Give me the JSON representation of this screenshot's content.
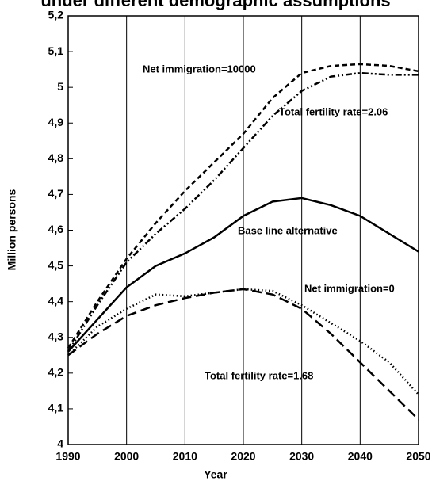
{
  "chart_data": {
    "type": "line",
    "title": "under different demographic assumptions",
    "x_label": "Year",
    "y_label": "Million persons",
    "x": [
      1990,
      1995,
      2000,
      2005,
      2010,
      2015,
      2020,
      2025,
      2030,
      2035,
      2040,
      2045,
      2050
    ],
    "series": [
      {
        "name": "Net immigration=10000",
        "color": "#000000",
        "dash": "6,4",
        "values": [
          4.27,
          4.4,
          4.52,
          4.62,
          4.71,
          4.79,
          4.87,
          4.97,
          5.04,
          5.06,
          5.065,
          5.06,
          5.045
        ]
      },
      {
        "name": "Total fertility rate=2.06",
        "color": "#000000",
        "dash": "8,3,2,3,2,3",
        "values": [
          4.26,
          4.39,
          4.51,
          4.59,
          4.66,
          4.74,
          4.83,
          4.92,
          4.99,
          5.03,
          5.04,
          5.035,
          5.035
        ]
      },
      {
        "name": "Base line alternative",
        "color": "#000000",
        "dash": "none",
        "values": [
          4.26,
          4.35,
          4.44,
          4.5,
          4.535,
          4.58,
          4.64,
          4.68,
          4.69,
          4.67,
          4.64,
          4.59,
          4.54
        ]
      },
      {
        "name": "Net immigration=0",
        "color": "#000000",
        "dash": "1.5,3",
        "values": [
          4.25,
          4.33,
          4.38,
          4.42,
          4.415,
          4.425,
          4.435,
          4.43,
          4.39,
          4.34,
          4.29,
          4.23,
          4.14
        ]
      },
      {
        "name": "Total fertility rate=1.68",
        "color": "#000000",
        "dash": "12,6",
        "values": [
          4.25,
          4.31,
          4.36,
          4.39,
          4.41,
          4.425,
          4.435,
          4.42,
          4.38,
          4.31,
          4.23,
          4.15,
          4.07
        ]
      }
    ],
    "xlim": [
      1990,
      2050
    ],
    "xticks": [
      1990,
      2000,
      2010,
      2020,
      2030,
      2040,
      2050
    ],
    "ylim": [
      4,
      5.2
    ],
    "yticks": [
      4,
      {
        "value": 4.1,
        "label": "4,1"
      },
      {
        "value": 4.2,
        "label": "4,2"
      },
      {
        "value": 4.3,
        "label": "4,3"
      },
      {
        "value": 4.4,
        "label": "4,4"
      },
      {
        "value": 4.5,
        "label": "4,5"
      },
      {
        "value": 4.6,
        "label": "4,6"
      },
      {
        "value": 4.7,
        "label": "4,7"
      },
      {
        "value": 4.8,
        "label": "4,8"
      },
      {
        "value": 4.9,
        "label": "4,9"
      },
      5,
      {
        "value": 5.1,
        "label": "5,1"
      },
      {
        "value": 5.2,
        "label": "5,2"
      }
    ],
    "grid": "x"
  }
}
